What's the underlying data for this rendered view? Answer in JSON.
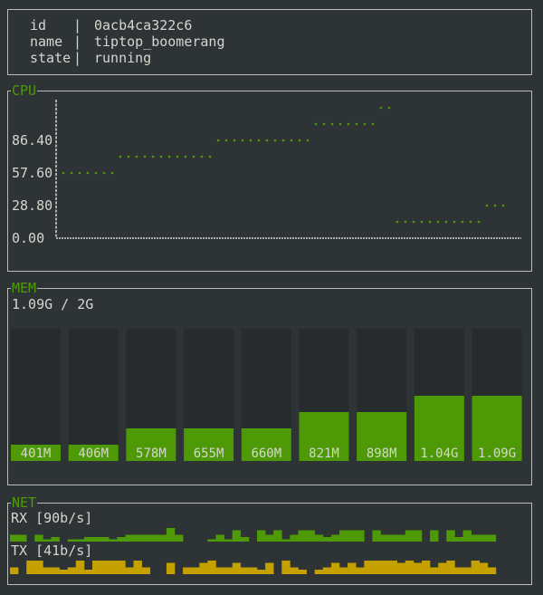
{
  "info": {
    "rows": [
      {
        "key": "id",
        "value": "0acb4ca322c6"
      },
      {
        "key": "name",
        "value": "tiptop_boomerang"
      },
      {
        "key": "state",
        "value": "running"
      }
    ]
  },
  "colors": {
    "background": "#2e3436",
    "green": "#4e9a06",
    "yellow": "#c4a000",
    "text": "#d3d7cf",
    "border": "#babdb6"
  },
  "chart_data": [
    {
      "type": "scatter",
      "title": "CPU",
      "ytick_labels": [
        "0.00",
        "28.80",
        "57.60",
        "86.40"
      ],
      "ylim": [
        0,
        120
      ],
      "values": [
        57.6,
        57.6,
        57.6,
        57.6,
        57.6,
        57.6,
        57.6,
        72,
        72,
        72,
        72,
        72,
        72,
        72,
        72,
        72,
        72,
        72,
        72,
        86.4,
        86.4,
        86.4,
        86.4,
        86.4,
        86.4,
        86.4,
        86.4,
        86.4,
        86.4,
        86.4,
        86.4,
        100.8,
        100.8,
        100.8,
        100.8,
        100.8,
        100.8,
        100.8,
        100.8,
        115.2,
        115.2,
        14.4,
        14.4,
        14.4,
        14.4,
        14.4,
        14.4,
        14.4,
        14.4,
        14.4,
        14.4,
        14.4,
        28.8,
        28.8,
        28.8
      ]
    },
    {
      "type": "bar",
      "title": "MEM",
      "summary": "1.09G / 2G",
      "limit_mb": 2048,
      "labels": [
        "401M",
        "406M",
        "578M",
        "655M",
        "660M",
        "821M",
        "898M",
        "1.04G",
        "1.09G"
      ],
      "values_mb": [
        401,
        406,
        578,
        655,
        660,
        821,
        898,
        1040,
        1090
      ]
    },
    {
      "type": "bar",
      "title": "NET",
      "series": [
        {
          "name": "RX [90b/s]",
          "color": "#4e9a06",
          "values": [
            3,
            3,
            0,
            3,
            1,
            2,
            0,
            1,
            1,
            2,
            2,
            2,
            1,
            2,
            3,
            3,
            3,
            3,
            3,
            6,
            3,
            0,
            0,
            0,
            1,
            3,
            1,
            5,
            2,
            0,
            5,
            3,
            5,
            1,
            3,
            5,
            5,
            3,
            2,
            3,
            5,
            5,
            5,
            0,
            5,
            3,
            3,
            3,
            5,
            5,
            0,
            5,
            0,
            5,
            2,
            5,
            3,
            3,
            3,
            0
          ]
        },
        {
          "name": "TX [41b/s]",
          "color": "#c4a000",
          "values": [
            3,
            0,
            6,
            6,
            3,
            3,
            2,
            3,
            6,
            2,
            6,
            6,
            6,
            6,
            3,
            6,
            3,
            0,
            0,
            5,
            0,
            3,
            3,
            5,
            6,
            3,
            3,
            5,
            3,
            3,
            2,
            5,
            0,
            6,
            3,
            2,
            0,
            2,
            3,
            5,
            3,
            5,
            3,
            6,
            6,
            6,
            6,
            5,
            6,
            5,
            6,
            3,
            5,
            6,
            3,
            3,
            6,
            5,
            3,
            0
          ]
        }
      ],
      "ylim": [
        0,
        8
      ]
    }
  ]
}
